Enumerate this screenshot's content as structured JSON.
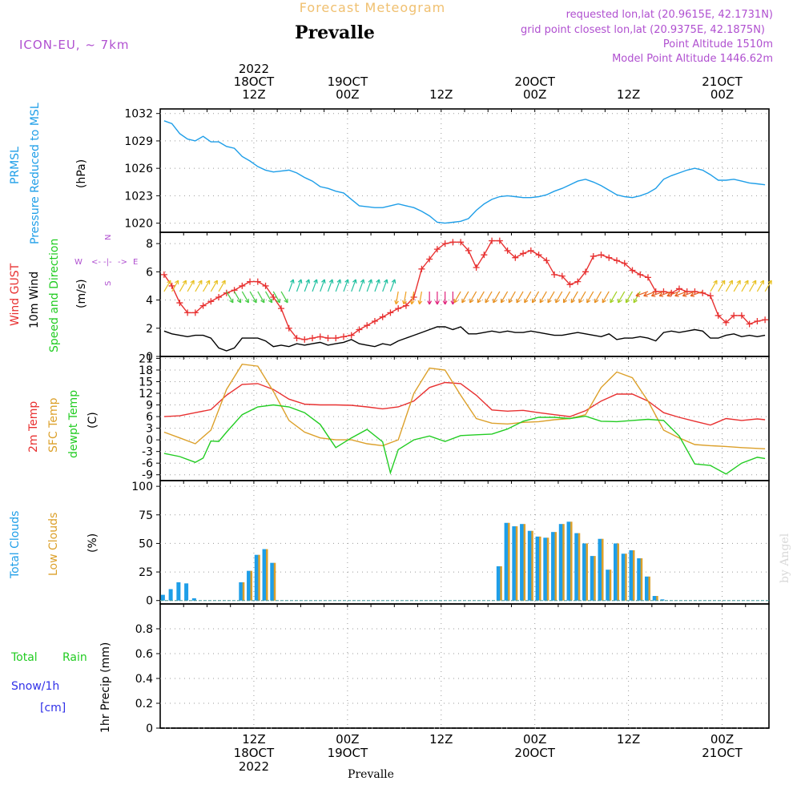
{
  "header": {
    "chart_title": "Forecast Meteogram",
    "location": "Prevalle",
    "model": "ICON-EU, ~ 7km",
    "requested": "requested lon,lat (20.9615E, 42.1731N)",
    "gridpoint": "grid point closest lon,lat (20.9375E, 42.1875N)",
    "point_alt": "Point Altitude 1510m",
    "model_alt": "Model Point Altitude 1446.62m",
    "footer_location": "Prevalle",
    "watermark": "by Angel"
  },
  "colors": {
    "pressure": "#1e9ee8",
    "gust": "#e83030",
    "wind10m": "#000000",
    "temp2m": "#e83030",
    "sfc_temp": "#dca02a",
    "dewpt": "#22cc22",
    "total_clouds": "#1e9ee8",
    "low_clouds": "#dca02a",
    "rain": "#22cc22",
    "snow": "#3030e8",
    "label_purple": "#b050d0",
    "title_orange": "#f0c070"
  },
  "time_axis": {
    "top": [
      {
        "h": 12,
        "l1": "2022",
        "l2": "18OCT",
        "l3": "12Z"
      },
      {
        "h": 24,
        "l1": "",
        "l2": "19OCT",
        "l3": "00Z"
      },
      {
        "h": 36,
        "l1": "",
        "l2": "",
        "l3": "12Z"
      },
      {
        "h": 48,
        "l1": "",
        "l2": "20OCT",
        "l3": "00Z"
      },
      {
        "h": 60,
        "l1": "",
        "l2": "",
        "l3": "12Z"
      },
      {
        "h": 72,
        "l1": "",
        "l2": "21OCT",
        "l3": "00Z"
      }
    ],
    "bottom": [
      {
        "h": 12,
        "l1": "12Z",
        "l2": "18OCT",
        "l3": "2022"
      },
      {
        "h": 24,
        "l1": "00Z",
        "l2": "19OCT",
        "l3": ""
      },
      {
        "h": 36,
        "l1": "12Z",
        "l2": "",
        "l3": ""
      },
      {
        "h": 48,
        "l1": "00Z",
        "l2": "20OCT",
        "l3": ""
      },
      {
        "h": 60,
        "l1": "12Z",
        "l2": "",
        "l3": ""
      },
      {
        "h": 72,
        "l1": "00Z",
        "l2": "21OCT",
        "l3": ""
      }
    ]
  },
  "chart_data": [
    {
      "type": "line",
      "panel": "pressure",
      "labels": [
        "PRMSL",
        "Pressure Reduced to MSL"
      ],
      "unit": "(hPa)",
      "ylim": [
        1019,
        1032.5
      ],
      "yticks": [
        1020,
        1023,
        1026,
        1029,
        1032
      ],
      "series": [
        {
          "key": "pressure",
          "x": [
            0.5,
            1.5,
            2.5,
            3.5,
            4.5,
            5.5,
            6.5,
            7.5,
            8.5,
            9.5,
            10.5,
            11.5,
            12.5,
            13.5,
            14.5,
            15.5,
            16.5,
            17.5,
            18.5,
            19.5,
            20.5,
            21.5,
            22.5,
            23.5,
            24.5,
            25.5,
            26.5,
            27.5,
            28.5,
            29.5,
            30.5,
            31.5,
            32.5,
            33.5,
            34.5,
            35.5,
            36.5,
            37.5,
            38.5,
            39.5,
            40.5,
            41.5,
            42.5,
            43.5,
            44.5,
            45.5,
            46.5,
            47.5,
            48.5,
            49.5,
            50.5,
            51.5,
            52.5,
            53.5,
            54.5,
            55.5,
            56.5,
            57.5,
            58.5,
            59.5,
            60.5,
            61.5,
            62.5,
            63.5,
            64.5,
            65.5,
            66.5,
            67.5,
            68.5,
            69.5,
            70.5,
            71.5,
            72.5,
            73.5,
            74.5,
            75.5,
            76.5,
            77.5
          ],
          "y": [
            1031.2,
            1030.9,
            1029.8,
            1029.2,
            1029.0,
            1029.5,
            1028.9,
            1028.9,
            1028.4,
            1028.2,
            1027.3,
            1026.8,
            1026.2,
            1025.8,
            1025.6,
            1025.7,
            1025.8,
            1025.5,
            1025.0,
            1024.6,
            1024.0,
            1023.8,
            1023.5,
            1023.3,
            1022.6,
            1021.9,
            1021.8,
            1021.7,
            1021.7,
            1021.9,
            1022.1,
            1021.9,
            1021.7,
            1021.3,
            1020.8,
            1020.1,
            1020.0,
            1020.1,
            1020.2,
            1020.5,
            1021.4,
            1022.1,
            1022.6,
            1022.9,
            1023.0,
            1022.9,
            1022.8,
            1022.8,
            1022.9,
            1023.1,
            1023.5,
            1023.8,
            1024.2,
            1024.6,
            1024.8,
            1024.5,
            1024.1,
            1023.6,
            1023.1,
            1022.9,
            1022.8,
            1023.0,
            1023.3,
            1023.8,
            1024.8,
            1025.2,
            1025.5,
            1025.8,
            1026.0,
            1025.8,
            1025.3,
            1024.7,
            1024.7,
            1024.8,
            1024.6,
            1024.4,
            1024.3,
            1024.2
          ]
        }
      ]
    },
    {
      "type": "line",
      "panel": "wind",
      "labels": [
        "Wind GUST",
        "10m Wind",
        "Speed and Direction"
      ],
      "unit": "(m/s)",
      "compass": {
        "n": "N",
        "s": "S",
        "w": "W",
        "e": "E",
        "arrow_l": "<-",
        "arrow_r": "->"
      },
      "ylim": [
        0,
        8.8
      ],
      "yticks": [
        0,
        2,
        4,
        6,
        8
      ],
      "series": [
        {
          "key": "gust",
          "x": [
            0.5,
            1.5,
            2.5,
            3.5,
            4.5,
            5.5,
            6.5,
            7.5,
            8.5,
            9.5,
            10.5,
            11.5,
            12.5,
            13.5,
            14.5,
            15.5,
            16.5,
            17.5,
            18.5,
            19.5,
            20.5,
            21.5,
            22.5,
            23.5,
            24.5,
            25.5,
            26.5,
            27.5,
            28.5,
            29.5,
            30.5,
            31.5,
            32.5,
            33.5,
            34.5,
            35.5,
            36.5,
            37.5,
            38.5,
            39.5,
            40.5,
            41.5,
            42.5,
            43.5,
            44.5,
            45.5,
            46.5,
            47.5,
            48.5,
            49.5,
            50.5,
            51.5,
            52.5,
            53.5,
            54.5,
            55.5,
            56.5,
            57.5,
            58.5,
            59.5,
            60.5,
            61.5,
            62.5,
            63.5,
            64.5,
            65.5,
            66.5,
            67.5,
            68.5,
            69.5,
            70.5,
            71.5,
            72.5,
            73.5,
            74.5,
            75.5,
            76.5,
            77.5
          ],
          "y": [
            5.8,
            5.0,
            3.8,
            3.1,
            3.1,
            3.6,
            3.9,
            4.2,
            4.5,
            4.7,
            5.0,
            5.3,
            5.3,
            5.0,
            4.2,
            3.4,
            2.0,
            1.3,
            1.2,
            1.3,
            1.4,
            1.3,
            1.3,
            1.4,
            1.5,
            1.9,
            2.2,
            2.5,
            2.8,
            3.1,
            3.4,
            3.6,
            4.2,
            6.2,
            6.9,
            7.6,
            8.0,
            8.1,
            8.1,
            7.5,
            6.3,
            7.2,
            8.2,
            8.2,
            7.5,
            7.0,
            7.3,
            7.5,
            7.2,
            6.8,
            5.8,
            5.7,
            5.1,
            5.3,
            6.0,
            7.1,
            7.2,
            7.0,
            6.8,
            6.6,
            6.1,
            5.8,
            5.6,
            4.6,
            4.6,
            4.5,
            4.8,
            4.6,
            4.6,
            4.5,
            4.3,
            2.9,
            2.4,
            2.9,
            2.9,
            2.3,
            2.5,
            2.6
          ]
        },
        {
          "key": "wind10m",
          "x": [
            0.5,
            1.5,
            2.5,
            3.5,
            4.5,
            5.5,
            6.5,
            7.5,
            8.5,
            9.5,
            10.5,
            11.5,
            12.5,
            13.5,
            14.5,
            15.5,
            16.5,
            17.5,
            18.5,
            19.5,
            20.5,
            21.5,
            22.5,
            23.5,
            24.5,
            25.5,
            26.5,
            27.5,
            28.5,
            29.5,
            30.5,
            31.5,
            32.5,
            33.5,
            34.5,
            35.5,
            36.5,
            37.5,
            38.5,
            39.5,
            40.5,
            41.5,
            42.5,
            43.5,
            44.5,
            45.5,
            46.5,
            47.5,
            48.5,
            49.5,
            50.5,
            51.5,
            52.5,
            53.5,
            54.5,
            55.5,
            56.5,
            57.5,
            58.5,
            59.5,
            60.5,
            61.5,
            62.5,
            63.5,
            64.5,
            65.5,
            66.5,
            67.5,
            68.5,
            69.5,
            70.5,
            71.5,
            72.5,
            73.5,
            74.5,
            75.5,
            76.5,
            77.5
          ],
          "y": [
            1.8,
            1.6,
            1.5,
            1.4,
            1.5,
            1.5,
            1.3,
            0.6,
            0.4,
            0.6,
            1.3,
            1.3,
            1.3,
            1.1,
            0.7,
            0.8,
            0.7,
            0.9,
            0.8,
            0.9,
            1.0,
            0.8,
            0.9,
            1.0,
            1.2,
            0.9,
            0.8,
            0.7,
            0.9,
            0.8,
            1.1,
            1.3,
            1.5,
            1.7,
            1.9,
            2.1,
            2.1,
            1.9,
            2.1,
            1.6,
            1.6,
            1.7,
            1.8,
            1.7,
            1.8,
            1.7,
            1.7,
            1.8,
            1.7,
            1.6,
            1.5,
            1.5,
            1.6,
            1.7,
            1.6,
            1.5,
            1.4,
            1.6,
            1.2,
            1.3,
            1.3,
            1.4,
            1.3,
            1.1,
            1.7,
            1.8,
            1.7,
            1.8,
            1.9,
            1.8,
            1.3,
            1.3,
            1.5,
            1.6,
            1.4,
            1.5,
            1.4,
            1.5
          ]
        }
      ]
    },
    {
      "type": "line",
      "panel": "temperature",
      "labels": [
        "2m Temp",
        "SFC Temp",
        "dewpt Temp"
      ],
      "unit": "(C)",
      "ylim": [
        -10.5,
        21.5
      ],
      "yticks": [
        -9,
        -6,
        -3,
        0,
        3,
        6,
        9,
        12,
        15,
        18,
        21
      ],
      "series": [
        {
          "key": "temp2m",
          "x": [
            0.5,
            2.5,
            4.5,
            6.5,
            8.5,
            10.5,
            12.5,
            14.5,
            16.5,
            18.5,
            20.5,
            22.5,
            24.5,
            26.5,
            28.5,
            30.5,
            32.5,
            34.5,
            36.5,
            38.5,
            40.5,
            42.5,
            44.5,
            46.5,
            48.5,
            50.5,
            52.5,
            54.5,
            56.5,
            58.5,
            60.5,
            62.5,
            64.5,
            66.5,
            68.5,
            70.5,
            72.5,
            74.5,
            76.5,
            77.5
          ],
          "y": [
            6.0,
            6.2,
            7.0,
            7.8,
            11.5,
            14.3,
            14.5,
            13.0,
            10.5,
            9.2,
            9.0,
            9.0,
            8.9,
            8.5,
            8.0,
            8.5,
            10.0,
            13.5,
            14.8,
            14.5,
            11.5,
            7.7,
            7.4,
            7.6,
            7.0,
            6.5,
            6.0,
            7.5,
            10.0,
            11.8,
            11.8,
            10.0,
            7.0,
            5.8,
            4.8,
            3.8,
            5.5,
            5.0,
            5.4,
            5.2
          ]
        },
        {
          "key": "sfc_temp",
          "x": [
            0.5,
            2.5,
            4.5,
            6.5,
            8.5,
            10.5,
            12.5,
            14.5,
            16.5,
            18.5,
            20.5,
            22.5,
            24.5,
            26.5,
            28.5,
            30.5,
            32.5,
            34.5,
            36.5,
            38.5,
            40.5,
            42.5,
            44.5,
            46.5,
            48.5,
            50.5,
            52.5,
            54.5,
            56.5,
            58.5,
            60.5,
            62.5,
            64.5,
            66.5,
            68.5,
            70.5,
            72.5,
            74.5,
            76.5,
            77.5
          ],
          "y": [
            2.0,
            0.5,
            -1.0,
            2.5,
            13.0,
            19.5,
            19.0,
            12.5,
            5.0,
            2.0,
            0.5,
            0.0,
            0.0,
            -1.0,
            -1.5,
            0.0,
            12.0,
            18.5,
            18.0,
            11.5,
            5.5,
            4.3,
            4.1,
            4.5,
            4.7,
            5.2,
            5.5,
            6.5,
            13.5,
            17.5,
            16.0,
            10.0,
            2.5,
            0.5,
            -1.2,
            -1.5,
            -1.7,
            -2.0,
            -2.2,
            -2.3
          ]
        },
        {
          "key": "dewpt",
          "x": [
            0.5,
            2.5,
            4.5,
            5.5,
            6.5,
            7.5,
            8.5,
            10.5,
            12.5,
            14.5,
            16.5,
            18.5,
            20.5,
            22.5,
            24.5,
            26.5,
            28.5,
            29.5,
            30.5,
            32.5,
            34.5,
            36.5,
            38.5,
            40.5,
            42.5,
            44.5,
            46.5,
            48.5,
            50.5,
            52.5,
            54.5,
            56.5,
            58.5,
            60.5,
            62.5,
            64.5,
            66.5,
            68.5,
            70.5,
            72.5,
            74.5,
            76.5,
            77.5
          ],
          "y": [
            -3.5,
            -4.3,
            -5.8,
            -4.7,
            -0.3,
            -0.4,
            2.0,
            6.5,
            8.5,
            9.0,
            8.5,
            7.0,
            4.0,
            -2.0,
            0.5,
            2.7,
            -0.5,
            -8.5,
            -2.5,
            0.0,
            1.0,
            -0.4,
            1.1,
            1.3,
            1.5,
            2.8,
            4.8,
            5.8,
            5.8,
            5.5,
            6.1,
            4.8,
            4.7,
            5.0,
            5.3,
            5.0,
            1.0,
            -6.2,
            -6.6,
            -8.8,
            -6.0,
            -4.5,
            -4.8
          ]
        }
      ]
    },
    {
      "type": "bar",
      "panel": "clouds",
      "labels": [
        "Total Clouds",
        "Low Clouds"
      ],
      "unit": "(%)",
      "ylim": [
        -3,
        105
      ],
      "yticks": [
        0,
        25,
        50,
        75,
        100
      ],
      "total_clouds_x": [
        0.5,
        1.5,
        2.5,
        3.5,
        4.5,
        10.5,
        11.5,
        12.5,
        13.5,
        14.5,
        43.5,
        44.5,
        45.5,
        46.5,
        47.5,
        48.5,
        49.5,
        50.5,
        51.5,
        52.5,
        53.5,
        54.5,
        55.5,
        56.5,
        57.5,
        58.5,
        59.5,
        60.5,
        61.5,
        62.5,
        63.5,
        64.5
      ],
      "total_clouds": [
        5,
        10,
        16,
        15,
        2,
        16,
        26,
        40,
        45,
        33,
        30,
        68,
        65,
        67,
        61,
        56,
        55,
        60,
        67,
        69,
        59,
        50,
        39,
        54,
        27,
        50,
        41,
        44,
        37,
        21,
        4,
        1
      ],
      "low_clouds_x": [
        10.5,
        11.5,
        12.5,
        13.5,
        14.5,
        43.5,
        44.5,
        45.5,
        46.5,
        47.5,
        48.5,
        49.5,
        50.5,
        51.5,
        52.5,
        53.5,
        54.5,
        55.5,
        56.5,
        57.5,
        58.5,
        59.5,
        60.5,
        61.5,
        62.5,
        63.5
      ],
      "low_clouds": [
        16,
        26,
        40,
        45,
        33,
        30,
        68,
        65,
        67,
        61,
        56,
        55,
        60,
        67,
        69,
        59,
        50,
        39,
        54,
        27,
        50,
        41,
        44,
        37,
        21,
        4
      ]
    },
    {
      "type": "bar",
      "panel": "precip",
      "labels_left": [
        "Total",
        "Rain",
        "Snow/1h",
        "[cm]"
      ],
      "label_axis": "1hr Precip (mm)",
      "ylim": [
        0,
        1.0
      ],
      "yticks": [
        0,
        0.2,
        0.4,
        0.6,
        0.8
      ],
      "ytick_labels": [
        "0",
        "0.2",
        "0.4",
        "0.6",
        "0.8"
      ],
      "values": []
    }
  ]
}
